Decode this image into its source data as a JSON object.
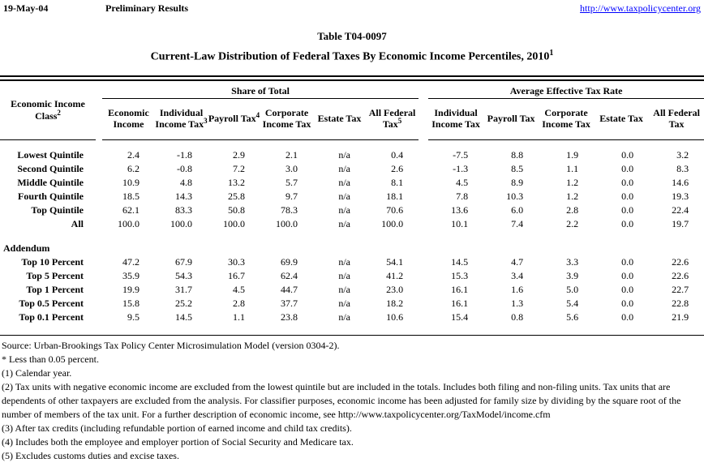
{
  "header": {
    "date": "19-May-04",
    "status": "Preliminary Results",
    "url": "http://www.taxpolicycenter.org"
  },
  "title": {
    "table_number": "Table T04-0097",
    "main": "Current-Law Distribution of Federal Taxes By Economic Income Percentiles, 2010",
    "main_sup": "1"
  },
  "table": {
    "row_header_label": "Economic Income Class",
    "row_header_sup": "2",
    "groups": [
      {
        "label": "Share of Total",
        "columns": [
          {
            "label": "Economic Income",
            "sup": ""
          },
          {
            "label": "Individual Income Tax",
            "sup": "3"
          },
          {
            "label": "Payroll Tax",
            "sup": "4"
          },
          {
            "label": "Corporate Income Tax",
            "sup": ""
          },
          {
            "label": "Estate Tax",
            "sup": ""
          },
          {
            "label": "All Federal Tax",
            "sup": "5"
          }
        ]
      },
      {
        "label": "Average Effective Tax Rate",
        "columns": [
          {
            "label": "Individual Income Tax",
            "sup": ""
          },
          {
            "label": "Payroll Tax",
            "sup": ""
          },
          {
            "label": "Corporate Income Tax",
            "sup": ""
          },
          {
            "label": "Estate Tax",
            "sup": ""
          },
          {
            "label": "All Federal Tax",
            "sup": ""
          }
        ]
      }
    ],
    "rows": [
      {
        "label": "Lowest Quintile",
        "share": [
          "2.4",
          "-1.8",
          "2.9",
          "2.1",
          "n/a",
          "0.4"
        ],
        "rate": [
          "-7.5",
          "8.8",
          "1.9",
          "0.0",
          "3.2"
        ]
      },
      {
        "label": "Second Quintile",
        "share": [
          "6.2",
          "-0.8",
          "7.2",
          "3.0",
          "n/a",
          "2.6"
        ],
        "rate": [
          "-1.3",
          "8.5",
          "1.1",
          "0.0",
          "8.3"
        ]
      },
      {
        "label": "Middle Quintile",
        "share": [
          "10.9",
          "4.8",
          "13.2",
          "5.7",
          "n/a",
          "8.1"
        ],
        "rate": [
          "4.5",
          "8.9",
          "1.2",
          "0.0",
          "14.6"
        ]
      },
      {
        "label": "Fourth Quintile",
        "share": [
          "18.5",
          "14.3",
          "25.8",
          "9.7",
          "n/a",
          "18.1"
        ],
        "rate": [
          "7.8",
          "10.3",
          "1.2",
          "0.0",
          "19.3"
        ]
      },
      {
        "label": "Top Quintile",
        "share": [
          "62.1",
          "83.3",
          "50.8",
          "78.3",
          "n/a",
          "70.6"
        ],
        "rate": [
          "13.6",
          "6.0",
          "2.8",
          "0.0",
          "22.4"
        ]
      },
      {
        "label": "All",
        "share": [
          "100.0",
          "100.0",
          "100.0",
          "100.0",
          "n/a",
          "100.0"
        ],
        "rate": [
          "10.1",
          "7.4",
          "2.2",
          "0.0",
          "19.7"
        ]
      }
    ],
    "addendum_label": "Addendum",
    "addendum_rows": [
      {
        "label": "Top 10 Percent",
        "share": [
          "47.2",
          "67.9",
          "30.3",
          "69.9",
          "n/a",
          "54.1"
        ],
        "rate": [
          "14.5",
          "4.7",
          "3.3",
          "0.0",
          "22.6"
        ]
      },
      {
        "label": "Top 5 Percent",
        "share": [
          "35.9",
          "54.3",
          "16.7",
          "62.4",
          "n/a",
          "41.2"
        ],
        "rate": [
          "15.3",
          "3.4",
          "3.9",
          "0.0",
          "22.6"
        ]
      },
      {
        "label": "Top 1 Percent",
        "share": [
          "19.9",
          "31.7",
          "4.5",
          "44.7",
          "n/a",
          "23.0"
        ],
        "rate": [
          "16.1",
          "1.6",
          "5.0",
          "0.0",
          "22.7"
        ]
      },
      {
        "label": "Top 0.5 Percent",
        "share": [
          "15.8",
          "25.2",
          "2.8",
          "37.7",
          "n/a",
          "18.2"
        ],
        "rate": [
          "16.1",
          "1.3",
          "5.4",
          "0.0",
          "22.8"
        ]
      },
      {
        "label": "Top 0.1 Percent",
        "share": [
          "9.5",
          "14.5",
          "1.1",
          "23.8",
          "n/a",
          "10.6"
        ],
        "rate": [
          "15.4",
          "0.8",
          "5.6",
          "0.0",
          "21.9"
        ]
      }
    ]
  },
  "footnotes": [
    "Source: Urban-Brookings Tax Policy Center Microsimulation Model (version 0304-2).",
    "* Less than 0.05 percent.",
    "(1) Calendar year.",
    "(2) Tax units with negative economic income are excluded from the lowest quintile but are included in the totals. Includes both filing and non-filing units. Tax units that are dependents of other taxpayers are excluded from the analysis. For classifier purposes, economic income has been adjusted for family size by dividing by the square root of the number of members of the tax unit.  For a further description of economic income, see http://www.taxpolicycenter.org/TaxModel/income.cfm",
    "(3) After tax credits (including refundable portion of earned income and child tax credits).",
    "(4) Includes both the employee and employer portion of Social Security and Medicare tax.",
    "(5) Excludes customs duties and excise taxes."
  ],
  "colors": {
    "link": "#0000ff",
    "text": "#000000",
    "background": "#ffffff"
  }
}
